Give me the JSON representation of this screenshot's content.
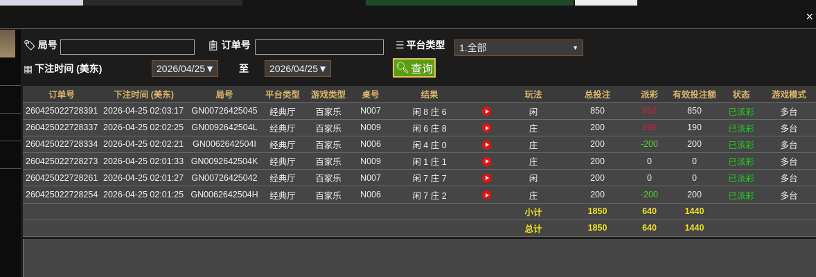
{
  "filters": {
    "round_label": "局号",
    "round_value": "",
    "order_label": "订单号",
    "order_value": "",
    "platform_label": "平台类型",
    "platform_value": "1.全部",
    "time_label": "下注时间 (美东)",
    "date_from": "2026/04/25▼",
    "to_label": "至",
    "date_to": "2026/04/25▼",
    "query_label": "查询"
  },
  "close": "×",
  "table": {
    "headers": [
      "订单号",
      "下注时间 (美东)",
      "局号",
      "平台类型",
      "游戏类型",
      "桌号",
      "结果",
      "",
      "玩法",
      "总投注",
      "派彩",
      "有效投注额",
      "状态",
      "游戏模式"
    ],
    "rows": [
      {
        "order": "260425022728391",
        "time": "2026-04-25 02:03:17",
        "round": "GN00726425045",
        "platform": "经典厅",
        "game": "百家乐",
        "table": "N007",
        "result": "闲 8 庄 6",
        "play": "闲",
        "bet": "850",
        "payout": "850",
        "payout_color": "#d0203a",
        "valid": "850",
        "status": "已派彩",
        "mode": "多台"
      },
      {
        "order": "260425022728337",
        "time": "2026-04-25 02:02:25",
        "round": "GN0092642504L",
        "platform": "经典厅",
        "game": "百家乐",
        "table": "N009",
        "result": "闲 6 庄 8",
        "play": "庄",
        "bet": "200",
        "payout": "190",
        "payout_color": "#d0203a",
        "valid": "190",
        "status": "已派彩",
        "mode": "多台"
      },
      {
        "order": "260425022728334",
        "time": "2026-04-25 02:02:21",
        "round": "GN0062642504I",
        "platform": "经典厅",
        "game": "百家乐",
        "table": "N006",
        "result": "闲 4 庄 0",
        "play": "庄",
        "bet": "200",
        "payout": "-200",
        "payout_color": "#55d22c",
        "valid": "200",
        "status": "已派彩",
        "mode": "多台"
      },
      {
        "order": "260425022728273",
        "time": "2026-04-25 02:01:33",
        "round": "GN0092642504K",
        "platform": "经典厅",
        "game": "百家乐",
        "table": "N009",
        "result": "闲 1 庄 1",
        "play": "庄",
        "bet": "200",
        "payout": "0",
        "payout_color": "#eeeeee",
        "valid": "0",
        "status": "已派彩",
        "mode": "多台"
      },
      {
        "order": "260425022728261",
        "time": "2026-04-25 02:01:27",
        "round": "GN00726425042",
        "platform": "经典厅",
        "game": "百家乐",
        "table": "N007",
        "result": "闲 7 庄 7",
        "play": "闲",
        "bet": "200",
        "payout": "0",
        "payout_color": "#eeeeee",
        "valid": "0",
        "status": "已派彩",
        "mode": "多台"
      },
      {
        "order": "260425022728254",
        "time": "2026-04-25 02:01:25",
        "round": "GN0062642504H",
        "platform": "经典厅",
        "game": "百家乐",
        "table": "N006",
        "result": "闲 7 庄 2",
        "play": "庄",
        "bet": "200",
        "payout": "-200",
        "payout_color": "#55d22c",
        "valid": "200",
        "status": "已派彩",
        "mode": "多台"
      }
    ],
    "subtotal": {
      "label": "小计",
      "bet": "1850",
      "payout": "640",
      "valid": "1440"
    },
    "total": {
      "label": "总计",
      "bet": "1850",
      "payout": "640",
      "valid": "1440"
    }
  }
}
